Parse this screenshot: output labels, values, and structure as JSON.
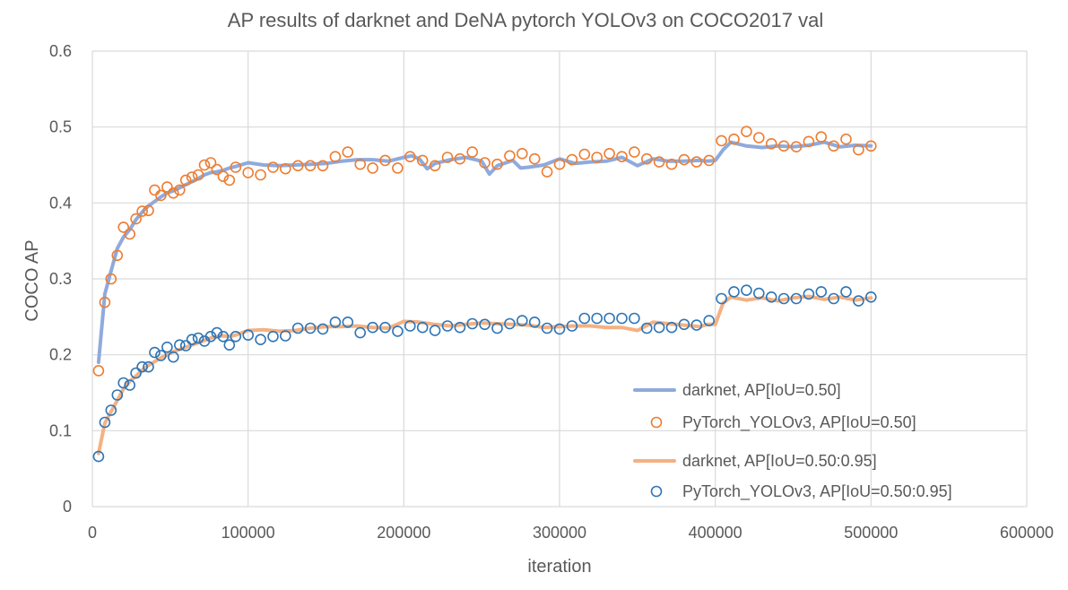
{
  "chart_data": {
    "type": "line",
    "title": "AP results of darknet and DeNA pytorch YOLOv3 on COCO2017 val",
    "xlabel": "iteration",
    "ylabel": "COCO AP",
    "xlim": [
      0,
      600000
    ],
    "ylim": [
      0,
      0.6
    ],
    "x_ticks": [
      0,
      100000,
      200000,
      300000,
      400000,
      500000,
      600000
    ],
    "x_tick_labels": [
      "0",
      "100000",
      "200000",
      "300000",
      "400000",
      "500000",
      "600000"
    ],
    "y_ticks": [
      0,
      0.1,
      0.2,
      0.3,
      0.4,
      0.5,
      0.6
    ],
    "y_tick_labels": [
      "0",
      "0.1",
      "0.2",
      "0.3",
      "0.4",
      "0.5",
      "0.6"
    ],
    "grid": true,
    "legend_position": "bottom-right",
    "series": [
      {
        "name": "darknet, AP[IoU=0.50]",
        "kind": "line",
        "color": "#8FAADC",
        "x": [
          4000,
          8000,
          12000,
          16000,
          20000,
          24000,
          28000,
          32000,
          36000,
          40000,
          44000,
          48000,
          52000,
          56000,
          60000,
          64000,
          68000,
          72000,
          76000,
          80000,
          84000,
          88000,
          92000,
          100000,
          110000,
          120000,
          130000,
          140000,
          150000,
          160000,
          170000,
          180000,
          190000,
          200000,
          205000,
          210000,
          215000,
          220000,
          230000,
          240000,
          250000,
          255000,
          260000,
          270000,
          275000,
          280000,
          290000,
          300000,
          310000,
          320000,
          330000,
          340000,
          350000,
          360000,
          370000,
          380000,
          390000,
          395000,
          400000,
          405000,
          410000,
          420000,
          430000,
          440000,
          450000,
          460000,
          470000,
          480000,
          490000,
          500000
        ],
        "values": [
          0.19,
          0.28,
          0.31,
          0.34,
          0.355,
          0.365,
          0.378,
          0.388,
          0.396,
          0.402,
          0.408,
          0.413,
          0.416,
          0.42,
          0.424,
          0.428,
          0.432,
          0.437,
          0.44,
          0.441,
          0.443,
          0.446,
          0.448,
          0.453,
          0.45,
          0.449,
          0.45,
          0.451,
          0.452,
          0.455,
          0.457,
          0.457,
          0.455,
          0.46,
          0.462,
          0.458,
          0.445,
          0.452,
          0.457,
          0.46,
          0.455,
          0.438,
          0.449,
          0.456,
          0.446,
          0.447,
          0.45,
          0.458,
          0.452,
          0.454,
          0.455,
          0.46,
          0.449,
          0.458,
          0.455,
          0.455,
          0.456,
          0.455,
          0.456,
          0.47,
          0.48,
          0.475,
          0.473,
          0.475,
          0.474,
          0.476,
          0.48,
          0.474,
          0.476,
          0.475
        ]
      },
      {
        "name": "PyTorch_YOLOv3, AP[IoU=0.50]",
        "kind": "scatter",
        "color": "#ED7D31",
        "x": [
          4000,
          8000,
          12000,
          16000,
          20000,
          24000,
          28000,
          32000,
          36000,
          40000,
          44000,
          48000,
          52000,
          56000,
          60000,
          64000,
          68000,
          72000,
          76000,
          80000,
          84000,
          88000,
          92000,
          100000,
          108000,
          116000,
          124000,
          132000,
          140000,
          148000,
          156000,
          164000,
          172000,
          180000,
          188000,
          196000,
          204000,
          212000,
          220000,
          228000,
          236000,
          244000,
          252000,
          260000,
          268000,
          276000,
          284000,
          292000,
          300000,
          308000,
          316000,
          324000,
          332000,
          340000,
          348000,
          356000,
          364000,
          372000,
          380000,
          388000,
          396000,
          404000,
          412000,
          420000,
          428000,
          436000,
          444000,
          452000,
          460000,
          468000,
          476000,
          484000,
          492000,
          500000
        ],
        "values": [
          0.179,
          0.269,
          0.3,
          0.331,
          0.368,
          0.359,
          0.379,
          0.389,
          0.39,
          0.417,
          0.41,
          0.421,
          0.413,
          0.417,
          0.43,
          0.434,
          0.437,
          0.45,
          0.453,
          0.444,
          0.435,
          0.43,
          0.447,
          0.44,
          0.437,
          0.447,
          0.445,
          0.449,
          0.449,
          0.449,
          0.461,
          0.467,
          0.451,
          0.446,
          0.456,
          0.446,
          0.461,
          0.456,
          0.449,
          0.46,
          0.458,
          0.467,
          0.453,
          0.451,
          0.462,
          0.465,
          0.458,
          0.441,
          0.451,
          0.457,
          0.464,
          0.46,
          0.465,
          0.461,
          0.467,
          0.458,
          0.454,
          0.451,
          0.457,
          0.454,
          0.456,
          0.482,
          0.484,
          0.494,
          0.486,
          0.478,
          0.475,
          0.474,
          0.481,
          0.487,
          0.475,
          0.484,
          0.47,
          0.475
        ]
      },
      {
        "name": "darknet, AP[IoU=0.50:0.95]",
        "kind": "line",
        "color": "#F4B183",
        "x": [
          4000,
          8000,
          12000,
          16000,
          20000,
          24000,
          28000,
          32000,
          36000,
          40000,
          44000,
          48000,
          52000,
          56000,
          60000,
          64000,
          68000,
          72000,
          76000,
          80000,
          84000,
          88000,
          92000,
          100000,
          110000,
          120000,
          130000,
          140000,
          150000,
          160000,
          170000,
          180000,
          190000,
          200000,
          210000,
          220000,
          230000,
          240000,
          250000,
          260000,
          270000,
          280000,
          290000,
          300000,
          310000,
          320000,
          330000,
          340000,
          350000,
          360000,
          370000,
          380000,
          390000,
          395000,
          400000,
          405000,
          410000,
          420000,
          430000,
          440000,
          450000,
          460000,
          470000,
          480000,
          490000,
          500000
        ],
        "values": [
          0.07,
          0.11,
          0.125,
          0.14,
          0.155,
          0.165,
          0.172,
          0.18,
          0.186,
          0.191,
          0.196,
          0.2,
          0.204,
          0.207,
          0.21,
          0.213,
          0.216,
          0.219,
          0.222,
          0.224,
          0.225,
          0.224,
          0.226,
          0.232,
          0.233,
          0.231,
          0.232,
          0.235,
          0.237,
          0.237,
          0.238,
          0.236,
          0.235,
          0.244,
          0.243,
          0.24,
          0.238,
          0.24,
          0.242,
          0.241,
          0.24,
          0.239,
          0.236,
          0.237,
          0.238,
          0.238,
          0.236,
          0.236,
          0.232,
          0.243,
          0.241,
          0.239,
          0.237,
          0.24,
          0.24,
          0.268,
          0.276,
          0.272,
          0.275,
          0.271,
          0.275,
          0.277,
          0.273,
          0.276,
          0.272,
          0.275
        ]
      },
      {
        "name": "PyTorch_YOLOv3, AP[IoU=0.50:0.95]",
        "kind": "scatter",
        "color": "#2E75B6",
        "x": [
          4000,
          8000,
          12000,
          16000,
          20000,
          24000,
          28000,
          32000,
          36000,
          40000,
          44000,
          48000,
          52000,
          56000,
          60000,
          64000,
          68000,
          72000,
          76000,
          80000,
          84000,
          88000,
          92000,
          100000,
          108000,
          116000,
          124000,
          132000,
          140000,
          148000,
          156000,
          164000,
          172000,
          180000,
          188000,
          196000,
          204000,
          212000,
          220000,
          228000,
          236000,
          244000,
          252000,
          260000,
          268000,
          276000,
          284000,
          292000,
          300000,
          308000,
          316000,
          324000,
          332000,
          340000,
          348000,
          356000,
          364000,
          372000,
          380000,
          388000,
          396000,
          404000,
          412000,
          420000,
          428000,
          436000,
          444000,
          452000,
          460000,
          468000,
          476000,
          484000,
          492000,
          500000
        ],
        "values": [
          0.066,
          0.111,
          0.127,
          0.147,
          0.163,
          0.16,
          0.176,
          0.184,
          0.184,
          0.203,
          0.199,
          0.21,
          0.197,
          0.213,
          0.212,
          0.22,
          0.222,
          0.218,
          0.224,
          0.229,
          0.224,
          0.213,
          0.224,
          0.226,
          0.22,
          0.224,
          0.225,
          0.235,
          0.235,
          0.234,
          0.243,
          0.243,
          0.229,
          0.236,
          0.236,
          0.231,
          0.238,
          0.236,
          0.232,
          0.238,
          0.236,
          0.241,
          0.24,
          0.235,
          0.241,
          0.245,
          0.243,
          0.235,
          0.234,
          0.238,
          0.248,
          0.248,
          0.248,
          0.248,
          0.248,
          0.235,
          0.236,
          0.236,
          0.24,
          0.239,
          0.245,
          0.274,
          0.283,
          0.285,
          0.281,
          0.276,
          0.274,
          0.274,
          0.28,
          0.283,
          0.274,
          0.283,
          0.271,
          0.276
        ]
      }
    ]
  }
}
